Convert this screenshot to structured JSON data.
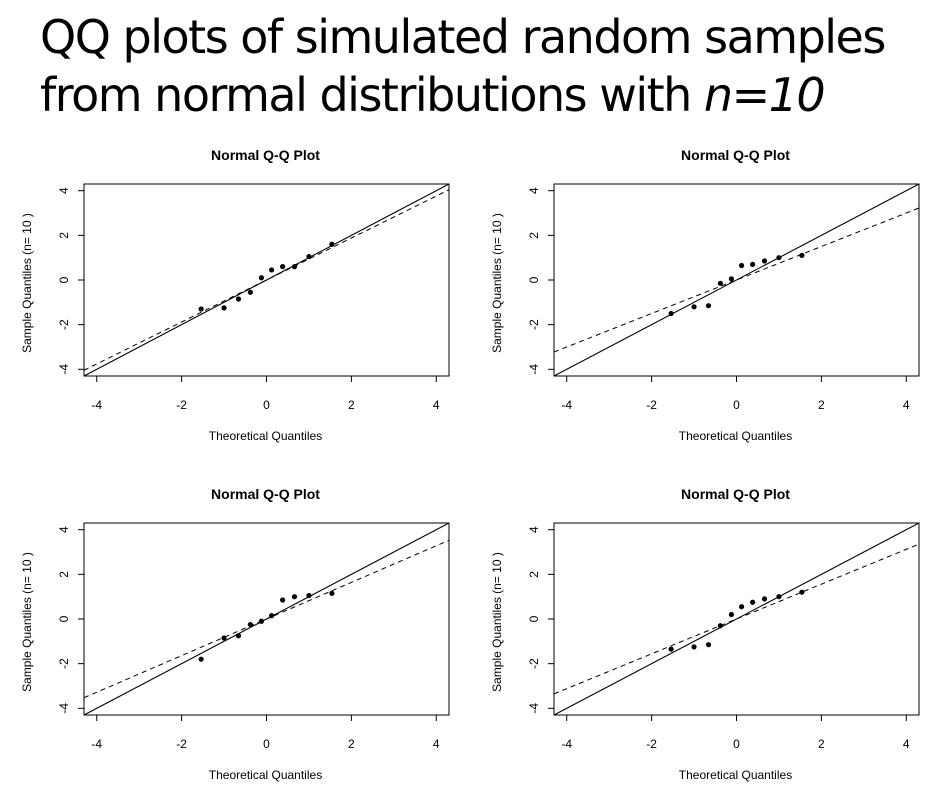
{
  "slide": {
    "title_line1": "QQ plots of simulated random samples",
    "title_line2_prefix": "from normal distributions with ",
    "title_line2_emphasis": "n=10"
  },
  "chart_data": [
    {
      "type": "scatter",
      "title": "Normal Q-Q Plot",
      "xlabel": "Theoretical Quantiles",
      "ylabel": "Sample Quantiles (n= 10 )",
      "xlim": [
        -4.3,
        4.3
      ],
      "ylim": [
        -4.3,
        4.3
      ],
      "xticks": [
        -4,
        -2,
        0,
        2,
        4
      ],
      "yticks": [
        -4,
        -2,
        0,
        2,
        4
      ],
      "grid": false,
      "points": {
        "x": [
          -1.54,
          -1.0,
          -0.66,
          -0.38,
          -0.12,
          0.12,
          0.38,
          0.66,
          1.0,
          1.54
        ],
        "y": [
          -1.3,
          -1.25,
          -0.85,
          -0.55,
          0.1,
          0.45,
          0.6,
          0.6,
          1.05,
          1.6
        ]
      },
      "solid_line": {
        "slope": 1.0,
        "intercept": 0.0
      },
      "dashed_line": {
        "slope": 0.94,
        "intercept": 0.0
      }
    },
    {
      "type": "scatter",
      "title": "Normal Q-Q Plot",
      "xlabel": "Theoretical Quantiles",
      "ylabel": "Sample Quantiles (n= 10 )",
      "xlim": [
        -4.3,
        4.3
      ],
      "ylim": [
        -4.3,
        4.3
      ],
      "xticks": [
        -4,
        -2,
        0,
        2,
        4
      ],
      "yticks": [
        -4,
        -2,
        0,
        2,
        4
      ],
      "grid": false,
      "points": {
        "x": [
          -1.54,
          -1.0,
          -0.66,
          -0.38,
          -0.12,
          0.12,
          0.38,
          0.66,
          1.0,
          1.54
        ],
        "y": [
          -1.5,
          -1.2,
          -1.15,
          -0.15,
          0.05,
          0.65,
          0.7,
          0.85,
          1.0,
          1.1
        ]
      },
      "solid_line": {
        "slope": 1.0,
        "intercept": 0.0
      },
      "dashed_line": {
        "slope": 0.75,
        "intercept": 0.0
      }
    },
    {
      "type": "scatter",
      "title": "Normal Q-Q Plot",
      "xlabel": "Theoretical Quantiles",
      "ylabel": "Sample Quantiles (n= 10 )",
      "xlim": [
        -4.3,
        4.3
      ],
      "ylim": [
        -4.3,
        4.3
      ],
      "xticks": [
        -4,
        -2,
        0,
        2,
        4
      ],
      "yticks": [
        -4,
        -2,
        0,
        2,
        4
      ],
      "grid": false,
      "points": {
        "x": [
          -1.54,
          -1.0,
          -0.66,
          -0.38,
          -0.12,
          0.12,
          0.38,
          0.66,
          1.0,
          1.54
        ],
        "y": [
          -1.8,
          -0.85,
          -0.75,
          -0.25,
          -0.1,
          0.15,
          0.85,
          1.0,
          1.05,
          1.15
        ]
      },
      "solid_line": {
        "slope": 1.0,
        "intercept": 0.0
      },
      "dashed_line": {
        "slope": 0.82,
        "intercept": 0.0
      }
    },
    {
      "type": "scatter",
      "title": "Normal Q-Q Plot",
      "xlabel": "Theoretical Quantiles",
      "ylabel": "Sample Quantiles (n= 10 )",
      "xlim": [
        -4.3,
        4.3
      ],
      "ylim": [
        -4.3,
        4.3
      ],
      "xticks": [
        -4,
        -2,
        0,
        2,
        4
      ],
      "yticks": [
        -4,
        -2,
        0,
        2,
        4
      ],
      "grid": false,
      "points": {
        "x": [
          -1.54,
          -1.0,
          -0.66,
          -0.38,
          -0.12,
          0.12,
          0.38,
          0.66,
          1.0,
          1.54
        ],
        "y": [
          -1.35,
          -1.25,
          -1.15,
          -0.3,
          0.2,
          0.55,
          0.75,
          0.9,
          1.0,
          1.2
        ]
      },
      "solid_line": {
        "slope": 1.0,
        "intercept": 0.0
      },
      "dashed_line": {
        "slope": 0.78,
        "intercept": 0.0
      }
    }
  ]
}
